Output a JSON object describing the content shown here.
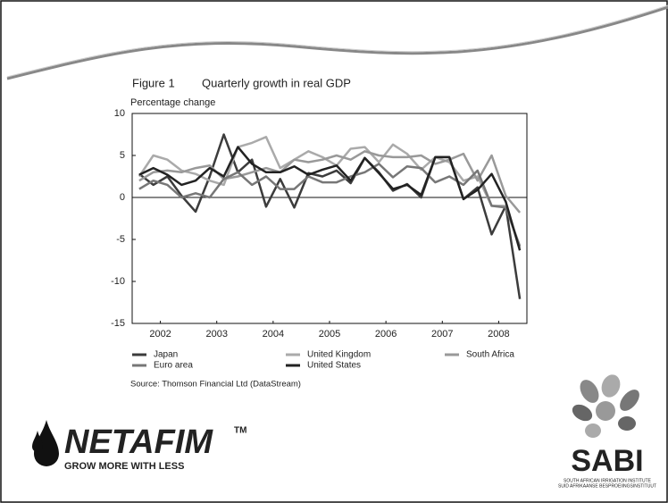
{
  "chart_data": {
    "type": "line",
    "figure": "Figure 1",
    "title": "Quarterly growth in real GDP",
    "y_label": "Percentage change",
    "source": "Source: Thomson Financial Ltd (DataStream)",
    "x": [
      2002.125,
      2002.375,
      2002.625,
      2002.875,
      2003.125,
      2003.375,
      2003.625,
      2003.875,
      2004.125,
      2004.375,
      2004.625,
      2004.875,
      2005.125,
      2005.375,
      2005.625,
      2005.875,
      2006.125,
      2006.375,
      2006.625,
      2006.875,
      2007.125,
      2007.375,
      2007.625,
      2007.875,
      2008.125,
      2008.375,
      2008.625,
      2008.875
    ],
    "xlim": [
      2002,
      2009
    ],
    "xticks": [
      {
        "value": 2002.5,
        "label": "2002"
      },
      {
        "value": 2003.5,
        "label": "2003"
      },
      {
        "value": 2004.5,
        "label": "2004"
      },
      {
        "value": 2005.5,
        "label": "2005"
      },
      {
        "value": 2006.5,
        "label": "2006"
      },
      {
        "value": 2007.5,
        "label": "2007"
      },
      {
        "value": 2008.5,
        "label": "2008"
      }
    ],
    "ylim": [
      -15,
      10
    ],
    "yticks": [
      10,
      5,
      0,
      -5,
      -10,
      -15
    ],
    "grid": false,
    "series": [
      {
        "name": "Japan",
        "color": "#3c3c3c",
        "values": [
          2.8,
          1.5,
          2.5,
          0.2,
          -1.7,
          2.5,
          7.5,
          3.0,
          4.5,
          -1.1,
          2.2,
          -1.2,
          2.9,
          2.5,
          3.2,
          1.7,
          4.7,
          3.0,
          0.8,
          1.6,
          0.0,
          4.8,
          4.8,
          -0.2,
          1.2,
          -4.4,
          -1.0,
          -12.1
        ]
      },
      {
        "name": "United Kingdom",
        "color": "#aaaaaa",
        "values": [
          2.5,
          5.0,
          4.5,
          3.2,
          2.8,
          2.0,
          1.5,
          6.0,
          6.5,
          7.2,
          3.5,
          4.5,
          5.5,
          4.8,
          3.8,
          5.8,
          6.0,
          4.2,
          6.3,
          5.2,
          3.3,
          4.8,
          4.2,
          2.0,
          2.5,
          -1.0,
          -1.0,
          -6.0
        ]
      },
      {
        "name": "South Africa",
        "color": "#999999",
        "values": [
          2.0,
          3.0,
          3.2,
          3.0,
          3.5,
          3.8,
          2.2,
          2.5,
          3.0,
          3.5,
          3.0,
          4.5,
          4.2,
          4.5,
          5.0,
          4.5,
          5.5,
          5.0,
          4.8,
          4.8,
          5.0,
          4.0,
          4.5,
          5.2,
          2.0,
          5.0,
          0.2,
          -1.8
        ]
      },
      {
        "name": "Euro area",
        "color": "#777777",
        "values": [
          1.0,
          2.0,
          1.5,
          0.0,
          0.5,
          0.0,
          2.2,
          3.0,
          1.5,
          2.5,
          1.0,
          1.0,
          2.5,
          1.8,
          1.8,
          2.5,
          3.0,
          4.0,
          2.4,
          3.7,
          3.5,
          1.8,
          2.5,
          1.5,
          3.2,
          -1.0,
          -1.2,
          -5.8
        ]
      },
      {
        "name": "United States",
        "color": "#222222",
        "values": [
          2.7,
          3.5,
          2.7,
          1.5,
          2.0,
          3.5,
          2.5,
          6.0,
          4.0,
          3.0,
          3.0,
          3.7,
          2.7,
          3.3,
          3.8,
          2.0,
          4.7,
          2.9,
          1.0,
          1.5,
          0.3,
          4.8,
          4.8,
          -0.2,
          0.9,
          2.8,
          -0.5,
          -6.3
        ]
      }
    ]
  },
  "slide": {
    "netafim": "NETAFIM",
    "trademark": "TM",
    "tagline": "GROW MORE WITH LESS",
    "sabi": "SABI",
    "sabi_english": "SOUTH AFRICAN IRRIGATION INSTITUTE",
    "sabi_afrikaans": "SUID AFRIKAANSE BESPROEIINGSINSTITUUT"
  }
}
